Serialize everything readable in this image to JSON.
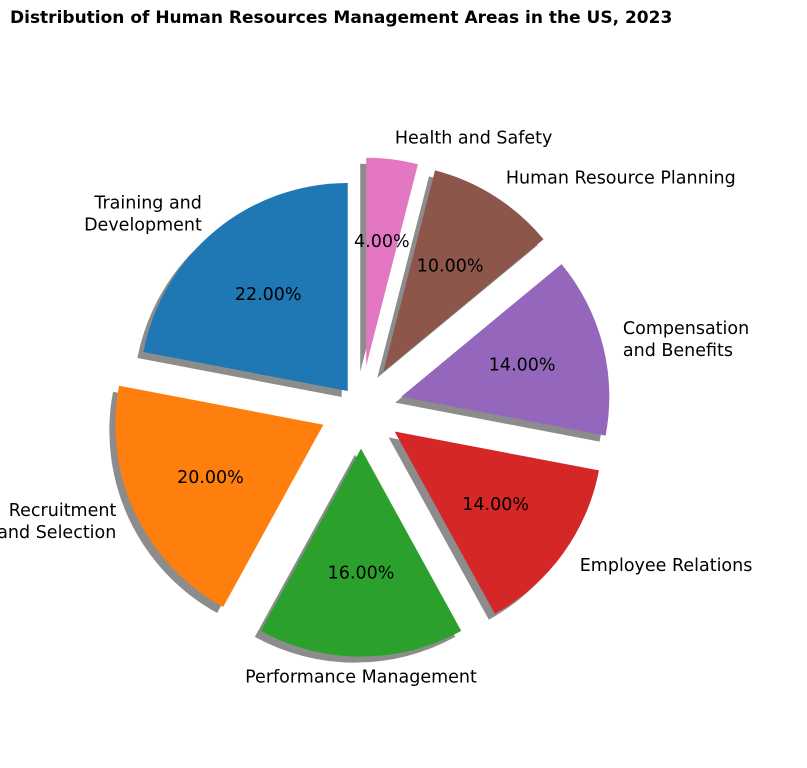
{
  "chart_data": {
    "type": "pie",
    "title": "Distribution of Human Resources Management Areas in the US, 2023",
    "autopct_format": "2 decimals",
    "start_angle_deg": 90,
    "direction": "counterclockwise",
    "shadow": true,
    "slices": [
      {
        "label": "Training and\nDevelopment",
        "value": 22,
        "pct_text": "22.00%",
        "color": "#1f77b4",
        "explode": 0.1
      },
      {
        "label": "Recruitment\nand Selection",
        "value": 20,
        "pct_text": "20.00%",
        "color": "#ff7f0e",
        "explode": 0.2
      },
      {
        "label": "Performance Management",
        "value": 16,
        "pct_text": "16.00%",
        "color": "#2ca02c",
        "explode": 0.2
      },
      {
        "label": "Employee Relations",
        "value": 14,
        "pct_text": "14.00%",
        "color": "#d62728",
        "explode": 0.2
      },
      {
        "label": "Compensation\nand Benefits",
        "value": 14,
        "pct_text": "14.00%",
        "color": "#9467bd",
        "explode": 0.2
      },
      {
        "label": "Human Resource Planning",
        "value": 10,
        "pct_text": "10.00%",
        "color": "#8c564b",
        "explode": 0.2
      },
      {
        "label": "Health and Safety",
        "value": 4,
        "pct_text": "4.00%",
        "color": "#e377c2",
        "explode": 0.2
      }
    ]
  }
}
